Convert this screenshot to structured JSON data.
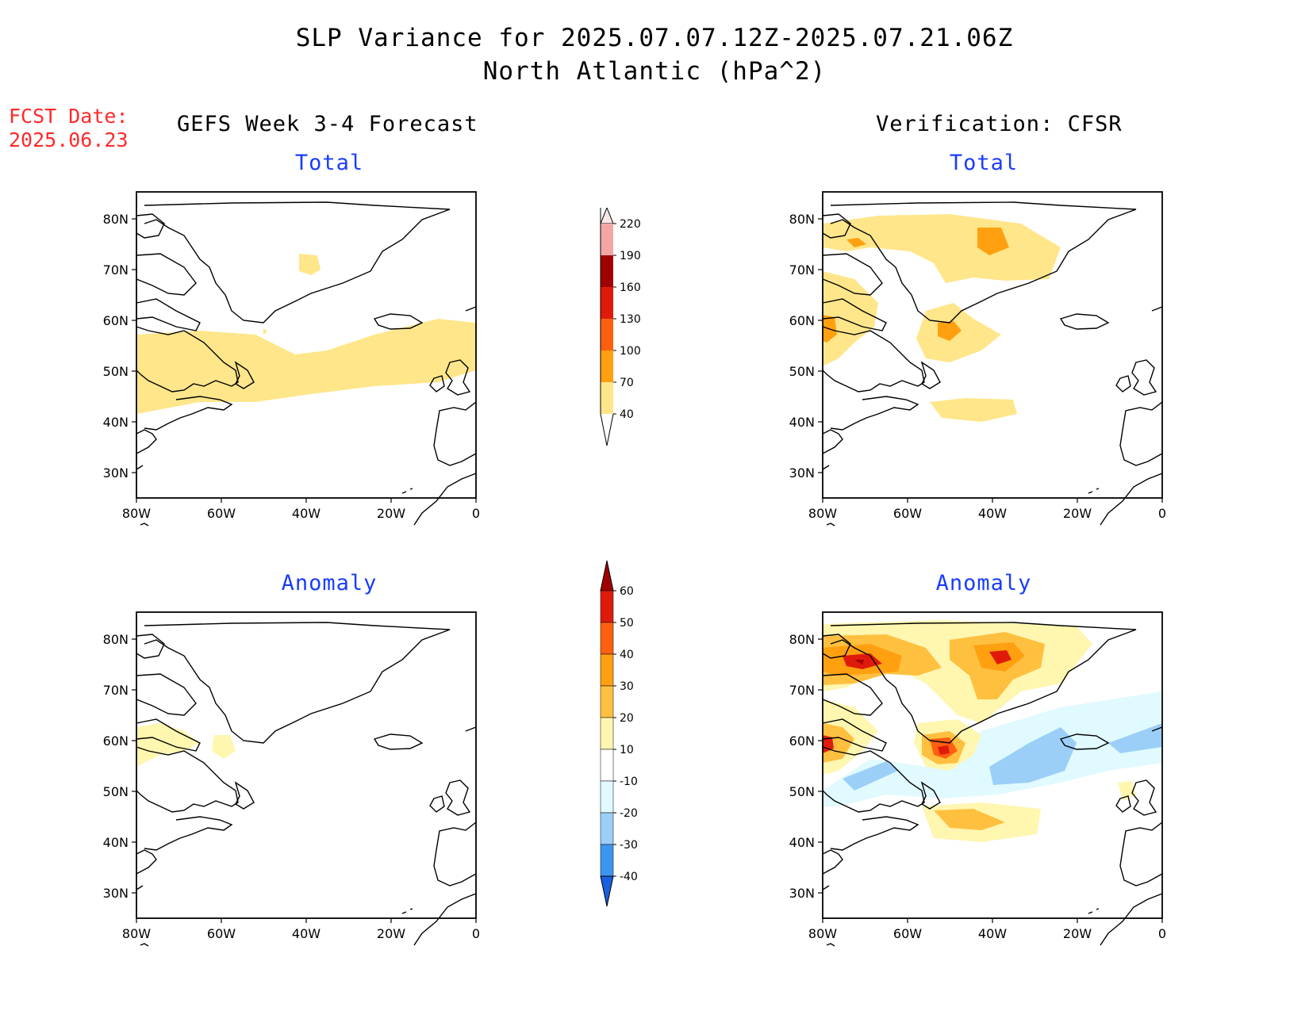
{
  "title": {
    "line1": "SLP Variance for 2025.07.07.12Z-2025.07.21.06Z",
    "line2": "North Atlantic (hPa^2)"
  },
  "fcst_date": {
    "label": "FCST Date:",
    "value": "2025.06.23"
  },
  "columns": {
    "left": "GEFS Week 3-4 Forecast",
    "right": "Verification: CFSR"
  },
  "panels": {
    "forecast_total": "Total",
    "forecast_anomaly": "Anomaly",
    "verif_total": "Total",
    "verif_anomaly": "Anomaly"
  },
  "map": {
    "lon_labels": [
      "80W",
      "60W",
      "40W",
      "20W",
      "0"
    ],
    "lat_labels": [
      "80N",
      "70N",
      "60N",
      "50N",
      "40N",
      "30N"
    ]
  },
  "colorbar_total": {
    "levels": [
      "220",
      "190",
      "160",
      "130",
      "100",
      "70",
      "40"
    ],
    "colors": [
      "#fde6e6",
      "#f4a6a6",
      "#a00000",
      "#e01a0a",
      "#ff6010",
      "#ffa010",
      "#ffe68a"
    ]
  },
  "colorbar_anomaly": {
    "levels": [
      "60",
      "50",
      "40",
      "30",
      "20",
      "10",
      "-10",
      "-20",
      "-30",
      "-40"
    ],
    "colors": [
      "#a00000",
      "#e01a0a",
      "#ff6010",
      "#ffa010",
      "#ffc040",
      "#fff6b0",
      "#ffffff",
      "#e0faff",
      "#9ccff8",
      "#3c96f0",
      "#1a60e0"
    ]
  }
}
